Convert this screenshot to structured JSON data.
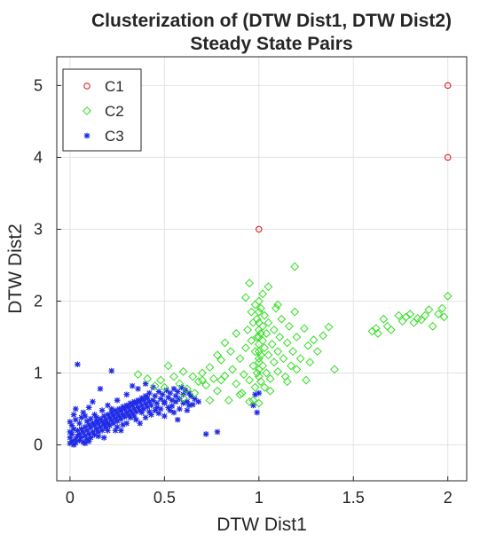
{
  "chart_data": {
    "type": "scatter",
    "title": "Clusterization of (DTW Dist1, DTW Dist2)",
    "subtitle": "Steady State Pairs",
    "xlabel": "DTW Dist1",
    "ylabel": "DTW Dist2",
    "xlim": [
      -0.07,
      2.1
    ],
    "ylim": [
      -0.5,
      5.4
    ],
    "x_ticks": [
      "0",
      "0.5",
      "1",
      "1.5",
      "2"
    ],
    "x_tick_values": [
      0,
      0.5,
      1,
      1.5,
      2
    ],
    "y_ticks": [
      "0",
      "1",
      "2",
      "3",
      "4",
      "5"
    ],
    "y_tick_values": [
      0,
      1,
      2,
      3,
      4,
      5
    ],
    "grid": true,
    "legend_position": "top-left",
    "series": [
      {
        "name": "C1",
        "marker": "circle",
        "color": "#e02020",
        "points": [
          [
            1.0,
            3.0
          ],
          [
            2.0,
            4.0
          ],
          [
            2.0,
            5.0
          ]
        ]
      },
      {
        "name": "C2",
        "marker": "diamond",
        "color": "#33dd22",
        "points": [
          [
            0.36,
            0.98
          ],
          [
            0.41,
            0.92
          ],
          [
            0.45,
            0.82
          ],
          [
            0.48,
            0.9
          ],
          [
            0.52,
            1.1
          ],
          [
            0.55,
            0.95
          ],
          [
            0.58,
            0.85
          ],
          [
            0.6,
            1.02
          ],
          [
            0.62,
            0.78
          ],
          [
            0.65,
            0.95
          ],
          [
            0.68,
            0.88
          ],
          [
            0.7,
            1.0
          ],
          [
            0.72,
            0.83
          ],
          [
            0.74,
            1.08
          ],
          [
            0.76,
            0.92
          ],
          [
            0.78,
            0.75
          ],
          [
            0.8,
            1.18
          ],
          [
            0.82,
            0.96
          ],
          [
            0.84,
            0.62
          ],
          [
            0.86,
            1.05
          ],
          [
            0.88,
            0.85
          ],
          [
            0.9,
            1.2
          ],
          [
            0.91,
            0.72
          ],
          [
            0.92,
            0.98
          ],
          [
            0.93,
            1.35
          ],
          [
            0.94,
            1.6
          ],
          [
            0.95,
            0.9
          ],
          [
            0.96,
            1.45
          ],
          [
            0.96,
            1.85
          ],
          [
            0.97,
            1.1
          ],
          [
            0.97,
            1.7
          ],
          [
            0.98,
            0.8
          ],
          [
            0.98,
            1.3
          ],
          [
            0.98,
            1.95
          ],
          [
            0.99,
            1.5
          ],
          [
            0.99,
            1.0
          ],
          [
            0.99,
            1.75
          ],
          [
            1.0,
            1.2
          ],
          [
            1.0,
            1.4
          ],
          [
            1.0,
            1.6
          ],
          [
            1.0,
            1.85
          ],
          [
            1.0,
            2.0
          ],
          [
            1.0,
            0.95
          ],
          [
            1.0,
            1.05
          ],
          [
            1.0,
            1.3
          ],
          [
            1.0,
            1.5
          ],
          [
            1.0,
            1.7
          ],
          [
            1.0,
            1.15
          ],
          [
            1.01,
            1.25
          ],
          [
            1.01,
            1.55
          ],
          [
            1.01,
            1.9
          ],
          [
            1.01,
            0.88
          ],
          [
            1.02,
            1.45
          ],
          [
            1.02,
            1.1
          ],
          [
            1.02,
            1.65
          ],
          [
            1.03,
            1.35
          ],
          [
            1.03,
            1.8
          ],
          [
            1.04,
            1.0
          ],
          [
            1.04,
            1.55
          ],
          [
            1.05,
            1.25
          ],
          [
            1.05,
            1.7
          ],
          [
            1.06,
            0.92
          ],
          [
            1.07,
            1.4
          ],
          [
            1.08,
            1.6
          ],
          [
            1.08,
            1.15
          ],
          [
            1.09,
            1.9
          ],
          [
            1.1,
            1.3
          ],
          [
            1.1,
            1.02
          ],
          [
            1.11,
            1.5
          ],
          [
            1.12,
            1.75
          ],
          [
            1.13,
            1.2
          ],
          [
            1.14,
            0.95
          ],
          [
            1.15,
            1.42
          ],
          [
            1.16,
            1.65
          ],
          [
            1.17,
            1.1
          ],
          [
            1.18,
            1.3
          ],
          [
            1.19,
            1.85
          ],
          [
            1.19,
            2.48
          ],
          [
            1.2,
            1.5
          ],
          [
            1.22,
            1.2
          ],
          [
            1.24,
            1.62
          ],
          [
            1.26,
            1.38
          ],
          [
            1.27,
            1.15
          ],
          [
            1.29,
            1.46
          ],
          [
            1.31,
            1.3
          ],
          [
            1.34,
            1.52
          ],
          [
            1.37,
            1.64
          ],
          [
            0.93,
            2.05
          ],
          [
            0.95,
            2.25
          ],
          [
            1.02,
            2.1
          ],
          [
            1.05,
            2.2
          ],
          [
            1.1,
            1.95
          ],
          [
            0.85,
            1.3
          ],
          [
            0.88,
            1.55
          ],
          [
            0.82,
            1.42
          ],
          [
            0.78,
            1.25
          ],
          [
            0.9,
            0.7
          ],
          [
            0.95,
            0.6
          ],
          [
            0.97,
            0.62
          ],
          [
            1.0,
            0.58
          ],
          [
            1.03,
            0.8
          ],
          [
            1.06,
            0.75
          ],
          [
            0.74,
            0.62
          ],
          [
            0.66,
            0.72
          ],
          [
            0.5,
            0.8
          ],
          [
            1.15,
            0.88
          ],
          [
            1.25,
            0.9
          ],
          [
            1.2,
            1.05
          ],
          [
            1.6,
            1.58
          ],
          [
            1.62,
            1.62
          ],
          [
            1.63,
            1.55
          ],
          [
            1.66,
            1.75
          ],
          [
            1.68,
            1.65
          ],
          [
            1.7,
            1.6
          ],
          [
            1.74,
            1.8
          ],
          [
            1.76,
            1.72
          ],
          [
            1.78,
            1.78
          ],
          [
            1.8,
            1.82
          ],
          [
            1.82,
            1.7
          ],
          [
            1.84,
            1.76
          ],
          [
            1.86,
            1.74
          ],
          [
            1.88,
            1.8
          ],
          [
            1.9,
            1.88
          ],
          [
            1.92,
            1.65
          ],
          [
            1.95,
            1.82
          ],
          [
            1.97,
            1.9
          ],
          [
            1.98,
            1.78
          ],
          [
            2.0,
            2.07
          ],
          [
            1.4,
            1.05
          ],
          [
            0.7,
            0.9
          ],
          [
            0.6,
            0.65
          ],
          [
            0.8,
            0.9
          ]
        ]
      },
      {
        "name": "C3",
        "marker": "asterisk",
        "color": "#1f2be6",
        "points": [
          [
            0.0,
            0.02
          ],
          [
            0.01,
            0.05
          ],
          [
            0.0,
            0.1
          ],
          [
            0.02,
            0.0
          ],
          [
            0.01,
            0.15
          ],
          [
            0.03,
            0.08
          ],
          [
            0.0,
            0.18
          ],
          [
            0.02,
            0.22
          ],
          [
            0.04,
            0.12
          ],
          [
            0.03,
            0.03
          ],
          [
            0.05,
            0.06
          ],
          [
            0.04,
            0.2
          ],
          [
            0.06,
            0.1
          ],
          [
            0.05,
            0.15
          ],
          [
            0.07,
            0.04
          ],
          [
            0.06,
            0.22
          ],
          [
            0.08,
            0.13
          ],
          [
            0.07,
            0.18
          ],
          [
            0.09,
            0.08
          ],
          [
            0.08,
            0.25
          ],
          [
            0.1,
            0.15
          ],
          [
            0.09,
            0.2
          ],
          [
            0.11,
            0.1
          ],
          [
            0.1,
            0.28
          ],
          [
            0.12,
            0.18
          ],
          [
            0.11,
            0.24
          ],
          [
            0.13,
            0.14
          ],
          [
            0.12,
            0.3
          ],
          [
            0.14,
            0.22
          ],
          [
            0.13,
            0.27
          ],
          [
            0.15,
            0.18
          ],
          [
            0.14,
            0.33
          ],
          [
            0.16,
            0.25
          ],
          [
            0.15,
            0.3
          ],
          [
            0.17,
            0.2
          ],
          [
            0.16,
            0.36
          ],
          [
            0.18,
            0.28
          ],
          [
            0.17,
            0.32
          ],
          [
            0.19,
            0.24
          ],
          [
            0.18,
            0.4
          ],
          [
            0.2,
            0.3
          ],
          [
            0.19,
            0.35
          ],
          [
            0.21,
            0.27
          ],
          [
            0.2,
            0.42
          ],
          [
            0.22,
            0.34
          ],
          [
            0.21,
            0.38
          ],
          [
            0.23,
            0.3
          ],
          [
            0.22,
            0.45
          ],
          [
            0.24,
            0.37
          ],
          [
            0.23,
            0.41
          ],
          [
            0.25,
            0.33
          ],
          [
            0.24,
            0.48
          ],
          [
            0.26,
            0.4
          ],
          [
            0.25,
            0.44
          ],
          [
            0.27,
            0.36
          ],
          [
            0.26,
            0.5
          ],
          [
            0.28,
            0.42
          ],
          [
            0.27,
            0.47
          ],
          [
            0.29,
            0.39
          ],
          [
            0.28,
            0.53
          ],
          [
            0.3,
            0.45
          ],
          [
            0.29,
            0.5
          ],
          [
            0.31,
            0.41
          ],
          [
            0.3,
            0.55
          ],
          [
            0.32,
            0.48
          ],
          [
            0.31,
            0.52
          ],
          [
            0.33,
            0.44
          ],
          [
            0.32,
            0.58
          ],
          [
            0.34,
            0.5
          ],
          [
            0.33,
            0.55
          ],
          [
            0.35,
            0.46
          ],
          [
            0.34,
            0.6
          ],
          [
            0.36,
            0.52
          ],
          [
            0.35,
            0.57
          ],
          [
            0.37,
            0.48
          ],
          [
            0.36,
            0.62
          ],
          [
            0.38,
            0.55
          ],
          [
            0.37,
            0.6
          ],
          [
            0.39,
            0.5
          ],
          [
            0.38,
            0.65
          ],
          [
            0.4,
            0.57
          ],
          [
            0.39,
            0.62
          ],
          [
            0.41,
            0.53
          ],
          [
            0.4,
            0.68
          ],
          [
            0.42,
            0.6
          ],
          [
            0.41,
            0.65
          ],
          [
            0.43,
            0.55
          ],
          [
            0.42,
            0.72
          ],
          [
            0.44,
            0.62
          ],
          [
            0.45,
            0.68
          ],
          [
            0.46,
            0.58
          ],
          [
            0.47,
            0.74
          ],
          [
            0.48,
            0.64
          ],
          [
            0.49,
            0.7
          ],
          [
            0.5,
            0.6
          ],
          [
            0.51,
            0.76
          ],
          [
            0.52,
            0.66
          ],
          [
            0.53,
            0.72
          ],
          [
            0.54,
            0.62
          ],
          [
            0.55,
            0.78
          ],
          [
            0.56,
            0.68
          ],
          [
            0.57,
            0.74
          ],
          [
            0.58,
            0.64
          ],
          [
            0.59,
            0.8
          ],
          [
            0.6,
            0.7
          ],
          [
            0.61,
            0.76
          ],
          [
            0.62,
            0.6
          ],
          [
            0.63,
            0.72
          ],
          [
            0.64,
            0.68
          ],
          [
            0.65,
            0.56
          ],
          [
            0.55,
            0.45
          ],
          [
            0.5,
            0.4
          ],
          [
            0.45,
            0.48
          ],
          [
            0.4,
            0.38
          ],
          [
            0.35,
            0.35
          ],
          [
            0.3,
            0.3
          ],
          [
            0.25,
            0.25
          ],
          [
            0.2,
            0.2
          ],
          [
            0.15,
            0.12
          ],
          [
            0.1,
            0.05
          ],
          [
            0.05,
            0.3
          ],
          [
            0.03,
            0.35
          ],
          [
            0.06,
            0.38
          ],
          [
            0.08,
            0.4
          ],
          [
            0.02,
            0.42
          ],
          [
            0.04,
            1.12
          ],
          [
            0.22,
            1.03
          ],
          [
            0.16,
            0.78
          ],
          [
            0.12,
            0.6
          ],
          [
            0.1,
            0.52
          ],
          [
            0.2,
            0.55
          ],
          [
            0.25,
            0.62
          ],
          [
            0.3,
            0.7
          ],
          [
            0.33,
            0.82
          ],
          [
            0.36,
            0.78
          ],
          [
            0.4,
            0.85
          ],
          [
            0.44,
            0.8
          ],
          [
            0.48,
            0.5
          ],
          [
            0.52,
            0.52
          ],
          [
            0.58,
            0.5
          ],
          [
            0.62,
            0.48
          ],
          [
            0.68,
            0.6
          ],
          [
            0.72,
            0.15
          ],
          [
            0.78,
            0.18
          ],
          [
            0.57,
            0.35
          ],
          [
            0.63,
            0.55
          ],
          [
            0.37,
            0.3
          ],
          [
            0.27,
            0.2
          ],
          [
            0.18,
            0.1
          ],
          [
            0.08,
            0.02
          ],
          [
            0.01,
            0.27
          ],
          [
            0.0,
            0.32
          ],
          [
            0.99,
            0.45
          ],
          [
            0.98,
            0.7
          ],
          [
            1.0,
            0.72
          ],
          [
            0.97,
            0.55
          ],
          [
            0.03,
            0.5
          ],
          [
            0.07,
            0.45
          ],
          [
            0.13,
            0.42
          ],
          [
            0.17,
            0.48
          ],
          [
            0.22,
            0.5
          ],
          [
            0.24,
            0.2
          ],
          [
            0.28,
            0.28
          ],
          [
            0.32,
            0.38
          ],
          [
            0.34,
            0.4
          ],
          [
            0.38,
            0.45
          ],
          [
            0.42,
            0.46
          ],
          [
            0.46,
            0.52
          ],
          [
            0.5,
            0.58
          ],
          [
            0.54,
            0.54
          ],
          [
            0.56,
            0.6
          ],
          [
            0.6,
            0.58
          ],
          [
            0.66,
            0.64
          ],
          [
            0.43,
            0.42
          ],
          [
            0.47,
            0.44
          ],
          [
            0.53,
            0.48
          ],
          [
            0.09,
            0.33
          ],
          [
            0.11,
            0.36
          ],
          [
            0.14,
            0.38
          ],
          [
            0.19,
            0.3
          ]
        ]
      }
    ]
  }
}
